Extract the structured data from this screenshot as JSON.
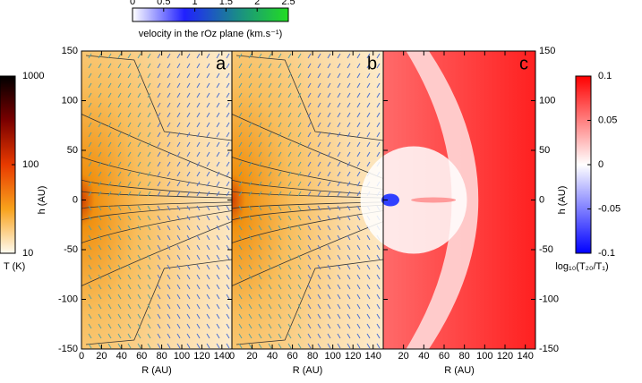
{
  "chart_data": [
    {
      "type": "heatmap",
      "label": "a",
      "xlabel": "R (AU)",
      "ylabel": "h (AU)",
      "xlim": [
        0,
        150
      ],
      "xticks": [
        0,
        20,
        40,
        60,
        80,
        100,
        120,
        140
      ],
      "ylim": [
        -150,
        150
      ],
      "yticks": [
        -150,
        -100,
        -50,
        0,
        50,
        100,
        150
      ],
      "yaxis_side": "left",
      "map": "temperature"
    },
    {
      "type": "heatmap",
      "label": "b",
      "xlabel": "R (AU)",
      "xlim": [
        0,
        150
      ],
      "xticks": [
        0,
        20,
        40,
        60,
        80,
        100,
        120,
        140
      ],
      "ylim": [
        -150,
        150
      ],
      "map": "temperature"
    },
    {
      "type": "heatmap",
      "label": "c",
      "xlabel": "R (AU)",
      "ylabel": "h (AU)",
      "xlim": [
        0,
        150
      ],
      "xticks": [
        20,
        40,
        60,
        80,
        100,
        120,
        140
      ],
      "ylim": [
        -150,
        150
      ],
      "yticks": [
        -150,
        -100,
        -50,
        0,
        50,
        100,
        150
      ],
      "yaxis_side": "right",
      "map": "ratio"
    }
  ],
  "colorbars": [
    {
      "label": "T (K)",
      "lim": [
        10,
        1000
      ],
      "ticks": [
        10,
        100,
        1000
      ],
      "log": true,
      "orientation": "vertical",
      "colors": [
        "#fffbf0",
        "#f8a21c",
        "#e83a00",
        "#7a0000",
        "#000000"
      ]
    },
    {
      "label": "velocity in the rOz plane (km.s⁻¹)",
      "lim": [
        0,
        2.5
      ],
      "ticks": [
        0,
        0.5,
        1,
        1.5,
        2,
        2.5
      ],
      "orientation": "horizontal",
      "colors": [
        "#ffffff",
        "#2020ff",
        "#1a8a8a",
        "#22dd22"
      ]
    },
    {
      "label": "log₁₀(T₂₀/T₁)",
      "lim": [
        -0.1,
        0.1
      ],
      "ticks": [
        -0.1,
        -0.05,
        0,
        0.05,
        0.1
      ],
      "orientation": "vertical",
      "colors": [
        "#0000ff",
        "#ffffff",
        "#ff0000"
      ]
    }
  ]
}
